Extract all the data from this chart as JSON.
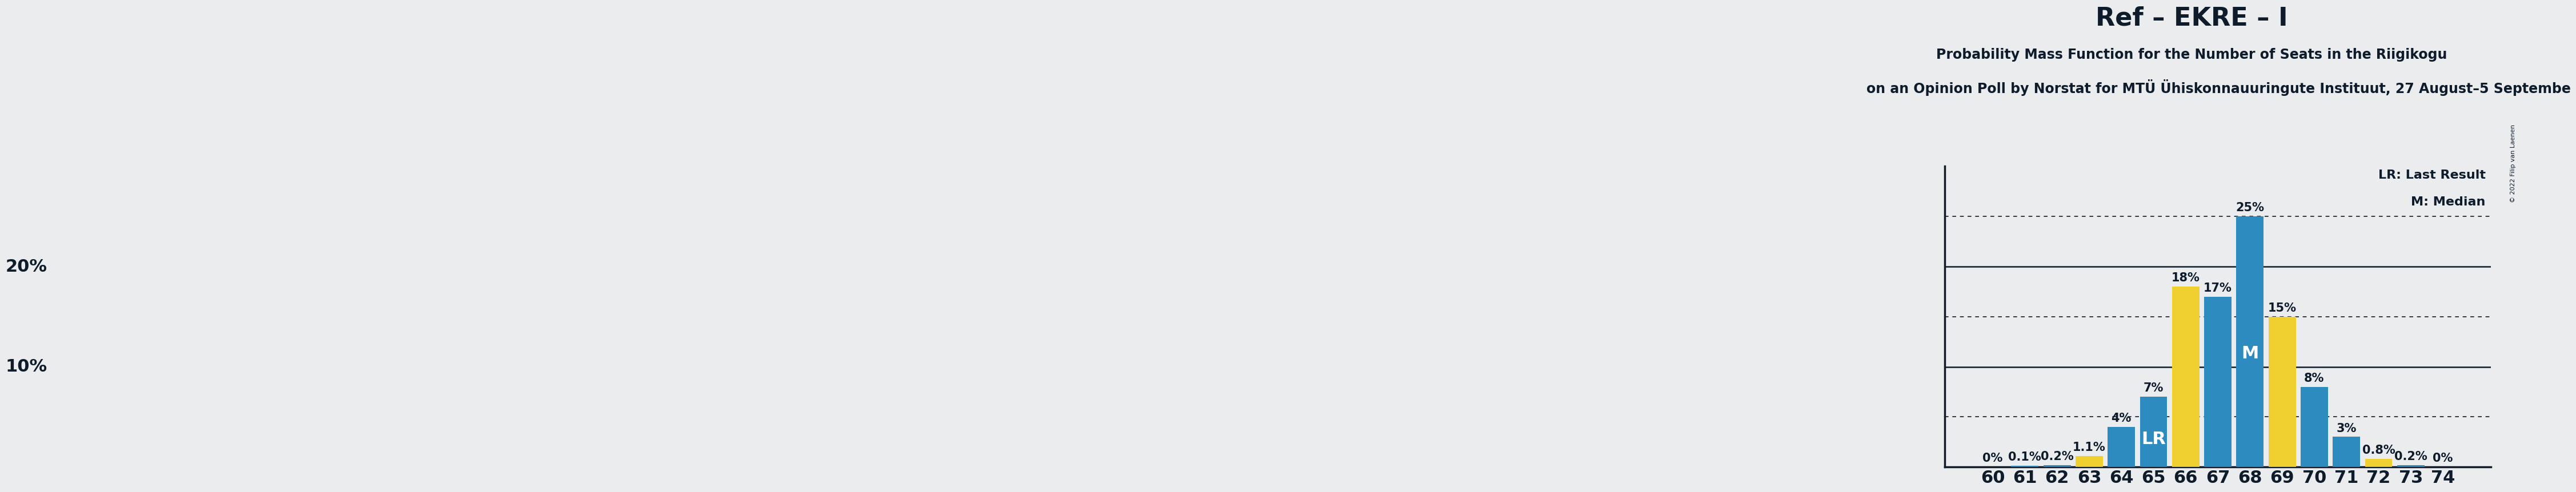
{
  "title": "Ref – EKRE – I",
  "subtitle": "Probability Mass Function for the Number of Seats in the Riigikogu",
  "subtitle2": "on an Opinion Poll by Norstat for MTÜ Ühiskonnauuringute Instituut, 27 August–5 Septembe",
  "copyright": "© 2022 Filip van Laenen",
  "seats": [
    60,
    61,
    62,
    63,
    64,
    65,
    66,
    67,
    68,
    69,
    70,
    71,
    72,
    73,
    74
  ],
  "values": [
    0.0,
    0.1,
    0.2,
    1.1,
    4.0,
    7.0,
    18.0,
    17.0,
    25.0,
    15.0,
    8.0,
    3.0,
    0.8,
    0.2,
    0.0
  ],
  "labels": [
    "0%",
    "0.1%",
    "0.2%",
    "1.1%",
    "4%",
    "7%",
    "18%",
    "17%",
    "25%",
    "15%",
    "8%",
    "3%",
    "0.8%",
    "0.2%",
    "0%"
  ],
  "yellow_seats": [
    63,
    66,
    69,
    72
  ],
  "blue_color": "#2E8BC0",
  "yellow_color": "#F0D030",
  "lr_seat": 65,
  "median_seat": 68,
  "lr_label": "LR",
  "median_label": "M",
  "legend_lr": "LR: Last Result",
  "legend_m": "M: Median",
  "background_color": "#EAECEE",
  "ylim": [
    0,
    30
  ],
  "solid_yticks": [
    10,
    20
  ],
  "dotted_yticks": [
    5,
    15,
    25
  ],
  "title_fontsize": 32,
  "subtitle_fontsize": 17,
  "subtitle2_fontsize": 17,
  "axis_fontsize": 22,
  "bar_label_fontsize": 15,
  "bar_inner_label_fontsize": 22,
  "legend_fontsize": 16
}
